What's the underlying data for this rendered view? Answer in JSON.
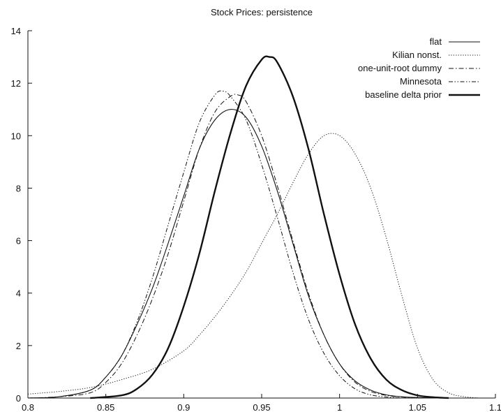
{
  "chart_data": {
    "type": "line",
    "title": "Stock Prices: persistence",
    "xlabel": "",
    "ylabel": "",
    "xlim": [
      0.8,
      1.1
    ],
    "ylim": [
      0,
      14
    ],
    "x_ticks": [
      0.8,
      0.85,
      0.9,
      0.95,
      1.0,
      1.05,
      1.1
    ],
    "x_tick_labels": [
      "0.8",
      "0.85",
      "0.9",
      "0.95",
      "1",
      "1.05",
      "1.1"
    ],
    "y_ticks": [
      0,
      2,
      4,
      6,
      8,
      10,
      12,
      14
    ],
    "y_tick_labels": [
      "0",
      "2",
      "4",
      "6",
      "8",
      "10",
      "12",
      "14"
    ],
    "grid": false,
    "legend_position": "top-right",
    "series": [
      {
        "name": "flat",
        "style": "solid-thin",
        "x": [
          0.8,
          0.82,
          0.84,
          0.85,
          0.86,
          0.87,
          0.88,
          0.89,
          0.9,
          0.91,
          0.92,
          0.93,
          0.94,
          0.95,
          0.96,
          0.97,
          0.98,
          0.99,
          1.0,
          1.01,
          1.02,
          1.03,
          1.04,
          1.05,
          1.06
        ],
        "y": [
          0.0,
          0.05,
          0.3,
          0.8,
          1.6,
          2.8,
          4.2,
          5.9,
          7.7,
          9.5,
          10.6,
          11.0,
          10.7,
          9.6,
          7.9,
          5.9,
          3.9,
          2.4,
          1.3,
          0.65,
          0.3,
          0.12,
          0.05,
          0.02,
          0.0
        ]
      },
      {
        "name": "Kilian nonst.",
        "style": "dotted",
        "x": [
          0.8,
          0.82,
          0.84,
          0.86,
          0.88,
          0.9,
          0.91,
          0.92,
          0.93,
          0.94,
          0.95,
          0.96,
          0.97,
          0.98,
          0.99,
          1.0,
          1.01,
          1.02,
          1.03,
          1.04,
          1.05,
          1.06,
          1.07,
          1.08,
          1.09
        ],
        "y": [
          0.15,
          0.25,
          0.4,
          0.7,
          1.1,
          1.8,
          2.4,
          3.1,
          3.9,
          4.8,
          5.9,
          7.0,
          8.2,
          9.3,
          10.0,
          10.0,
          9.3,
          8.0,
          6.1,
          3.9,
          1.9,
          0.7,
          0.2,
          0.05,
          0.0
        ]
      },
      {
        "name": "one-unit-root dummy",
        "style": "dash-dot",
        "x": [
          0.8,
          0.82,
          0.84,
          0.85,
          0.86,
          0.87,
          0.88,
          0.89,
          0.9,
          0.91,
          0.92,
          0.93,
          0.935,
          0.94,
          0.95,
          0.96,
          0.97,
          0.98,
          0.99,
          1.0,
          1.01,
          1.02,
          1.03,
          1.04,
          1.05
        ],
        "y": [
          0.0,
          0.05,
          0.2,
          0.6,
          1.3,
          2.4,
          3.8,
          5.5,
          7.5,
          9.5,
          10.9,
          11.5,
          11.55,
          11.3,
          10.0,
          8.1,
          6.0,
          4.0,
          2.4,
          1.3,
          0.6,
          0.25,
          0.1,
          0.04,
          0.0
        ]
      },
      {
        "name": "Minnesota",
        "style": "dash-dot-dot",
        "x": [
          0.8,
          0.82,
          0.84,
          0.85,
          0.86,
          0.87,
          0.88,
          0.89,
          0.9,
          0.91,
          0.92,
          0.925,
          0.93,
          0.94,
          0.95,
          0.96,
          0.97,
          0.98,
          0.99,
          1.0,
          1.01,
          1.02,
          1.03,
          1.04
        ],
        "y": [
          0.0,
          0.05,
          0.3,
          0.8,
          1.6,
          2.9,
          4.6,
          6.6,
          8.6,
          10.5,
          11.55,
          11.7,
          11.5,
          10.6,
          8.9,
          6.9,
          4.8,
          3.0,
          1.7,
          0.85,
          0.35,
          0.12,
          0.04,
          0.0
        ]
      },
      {
        "name": "baseline delta prior",
        "style": "solid-thick",
        "x": [
          0.84,
          0.86,
          0.87,
          0.88,
          0.89,
          0.9,
          0.91,
          0.92,
          0.93,
          0.94,
          0.95,
          0.955,
          0.96,
          0.97,
          0.98,
          0.99,
          1.0,
          1.01,
          1.02,
          1.03,
          1.04,
          1.05,
          1.06,
          1.07
        ],
        "y": [
          0.0,
          0.1,
          0.35,
          0.9,
          1.9,
          3.5,
          5.5,
          7.9,
          10.1,
          11.9,
          12.9,
          13.0,
          12.8,
          11.5,
          9.5,
          7.0,
          4.7,
          2.8,
          1.5,
          0.7,
          0.3,
          0.1,
          0.03,
          0.0
        ]
      }
    ]
  }
}
